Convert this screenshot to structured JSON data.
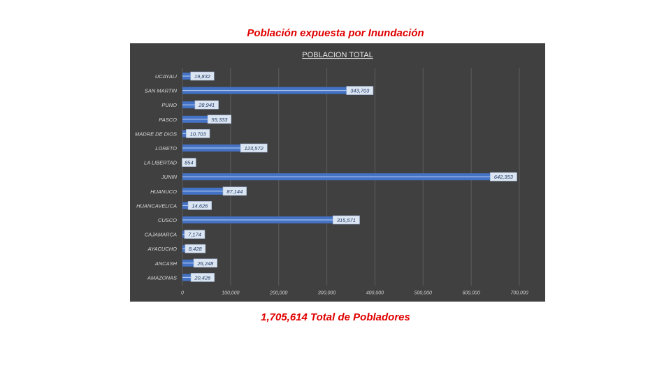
{
  "slide": {
    "title": "Población expuesta por Inundación",
    "total": "1,705,614 Total de Pobladores"
  },
  "colors": {
    "title_red": "#e00000",
    "panel_bg": "#404040",
    "bar_fill": "#4472c4",
    "bar_highlight": "#a9c4ef",
    "label_box": "#dce6f2",
    "label_text": "#1f3864"
  },
  "chart_data": {
    "type": "bar",
    "orientation": "horizontal",
    "title": "POBLACION TOTAL",
    "categories": [
      "UCAYALI",
      "SAN MARTIN",
      "PUNO",
      "PASCO",
      "MADRE DE DIOS",
      "LORETO",
      "LA LIBERTAD",
      "JUNIN",
      "HUANUCO",
      "HUANCAVELICA",
      "CUSCO",
      "CAJAMARCA",
      "AYACUCHO",
      "ANCASH",
      "AMAZONAS"
    ],
    "values": [
      19832,
      343703,
      28941,
      55333,
      10703,
      123572,
      854,
      642353,
      87144,
      14626,
      315571,
      7174,
      8428,
      26248,
      20426
    ],
    "value_labels": [
      "19,832",
      "343,703",
      "28,941",
      "55,333",
      "10,703",
      "123,572",
      "854",
      "642,353",
      "87,144",
      "14,626",
      "315,571",
      "7,174",
      "8,428",
      "26,248",
      "20,426"
    ],
    "xlim": [
      0,
      700000
    ],
    "xticks": [
      "0",
      "100,000",
      "200,000",
      "300,000",
      "400,000",
      "500,000",
      "600,000",
      "700,000"
    ],
    "grid": true,
    "legend": "none"
  }
}
